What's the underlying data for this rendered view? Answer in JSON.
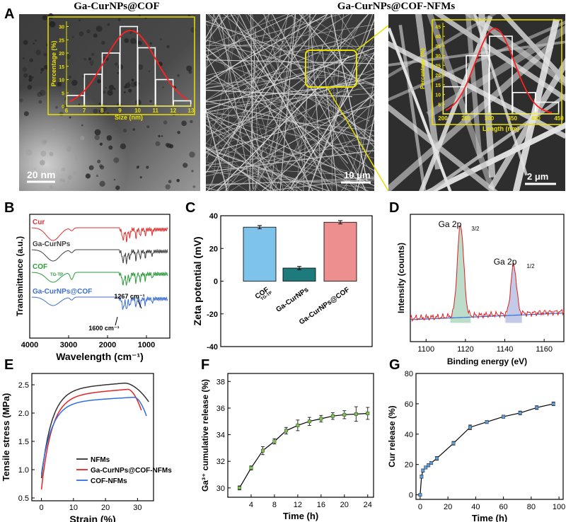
{
  "panel_labels": {
    "A": "A",
    "B": "B",
    "C": "C",
    "D": "D",
    "E": "E",
    "F": "F",
    "G": "G"
  },
  "panelA": {
    "title_left": "Ga-CurNPs@COF",
    "title_right": "Ga-CurNPs@COF-NFMs",
    "scale1": "20 nm",
    "scale2": "10 μm",
    "scale3": "2 μm",
    "colors": {
      "inset_border": "#e8e000",
      "fit": "#ff2020"
    }
  },
  "chart_data": [
    {
      "id": "A_size_hist",
      "type": "bar",
      "xlabel": "Size (nm)",
      "ylabel": "Percentage (%)",
      "xticks": [
        "6",
        "7",
        "8",
        "9",
        "10",
        "11",
        "12",
        "13"
      ],
      "yticks": [
        "0",
        "5",
        "10",
        "15",
        "20",
        "25",
        "30"
      ],
      "xlim": [
        6,
        13
      ],
      "ylim": [
        0,
        32
      ],
      "bins": [
        6.5,
        7.5,
        8.5,
        9.5,
        10.5,
        11.5,
        12.5
      ],
      "values": [
        4,
        12,
        20,
        30,
        22,
        10,
        2
      ],
      "fit_mean": 9.6,
      "fit_sigma": 1.45,
      "fit_peak": 28.5
    },
    {
      "id": "A_length_hist",
      "type": "bar",
      "xlabel": "Length (nm)",
      "ylabel": "Percentage (%)",
      "xticks": [
        "200",
        "250",
        "300",
        "350",
        "400",
        "450"
      ],
      "yticks": [
        "5",
        "10",
        "15",
        "20",
        "25",
        "30",
        "35",
        "40",
        "45"
      ],
      "xlim": [
        200,
        450
      ],
      "ylim": [
        0,
        47
      ],
      "bins": [
        225,
        275,
        325,
        375,
        425
      ],
      "values": [
        14,
        30,
        40,
        11,
        6
      ],
      "fit_mean": 312,
      "fit_sigma": 42,
      "fit_peak": 44
    },
    {
      "id": "B_ftir",
      "type": "line",
      "xlabel": "Wavelength (cm⁻¹)",
      "ylabel": "Transmittance (a.u.)",
      "xticks": [
        "4000",
        "3000",
        "2000",
        "1000"
      ],
      "xlim": [
        4000,
        400
      ],
      "series": [
        {
          "name": "Cur",
          "color": "#e03030"
        },
        {
          "name": "Ga-CurNPs",
          "color": "#404040"
        },
        {
          "name": "COF",
          "sub": "TG-TP",
          "color": "#2a9a3a"
        },
        {
          "name": "Ga-CurNPs@COF",
          "color": "#3b6fd0"
        }
      ],
      "annotations": [
        "1267 cm⁻¹",
        "1600 cm⁻¹"
      ]
    },
    {
      "id": "C_zeta",
      "type": "bar",
      "ylabel": "Zeta potential (mV)",
      "yticks": [
        "40",
        "20",
        "0",
        "-20",
        "-40"
      ],
      "ylim": [
        -40,
        40
      ],
      "categories": [
        "COF",
        "Ga-CurNPs",
        "Ga-CurNPs@COF"
      ],
      "category_sub": [
        "TG-TP",
        "",
        ""
      ],
      "values": [
        33,
        8,
        36
      ],
      "errors": [
        1,
        1,
        1
      ],
      "colors": [
        "#7ec3ea",
        "#1d7b7b",
        "#ee8f8f"
      ]
    },
    {
      "id": "D_xps",
      "type": "line",
      "xlabel": "Binding energy (eV)",
      "ylabel": "Intensity (counts)",
      "xticks": [
        "1100",
        "1120",
        "1140",
        "1160"
      ],
      "xlim": [
        1092,
        1170
      ],
      "peaks": [
        {
          "label": "Ga 2p",
          "sub": "3/2",
          "center": 1117.5
        },
        {
          "label": "Ga 2p",
          "sub": "1/2",
          "center": 1144.5
        }
      ]
    },
    {
      "id": "E_tensile",
      "type": "line",
      "xlabel": "Strain (%)",
      "ylabel": "Tensile stress (MPa)",
      "xticks": [
        "0",
        "10",
        "20",
        "30"
      ],
      "yticks": [
        "0.5",
        "1.0",
        "1.5",
        "2.0",
        "2.5"
      ],
      "xlim": [
        -3,
        35
      ],
      "ylim": [
        0.45,
        2.7
      ],
      "series": [
        {
          "name": "NFMs",
          "color": "#333333",
          "start": 0.85,
          "max": 2.53,
          "peakx": 26,
          "endx": 33.5,
          "endy": 2.2
        },
        {
          "name": "Ga-CurNPs@COF-NFMs",
          "color": "#e52525",
          "start": 0.65,
          "max": 2.42,
          "peakx": 27,
          "endx": 31.2,
          "endy": 2.05
        },
        {
          "name": "COF-NFMs",
          "color": "#2f6fe0",
          "start": 0.92,
          "max": 2.28,
          "peakx": 29,
          "endx": 32.8,
          "endy": 1.95
        }
      ]
    },
    {
      "id": "F_release",
      "type": "line",
      "xlabel": "Time (h)",
      "ylabel": "Ga³⁺ cumulative release (%)",
      "xticks": [
        "4",
        "8",
        "12",
        "16",
        "20",
        "24"
      ],
      "yticks": [
        "30",
        "32",
        "34",
        "36",
        "38"
      ],
      "xlim": [
        0,
        25
      ],
      "ylim": [
        29.3,
        38.6
      ],
      "x": [
        2,
        4,
        6,
        8,
        10,
        12,
        14,
        16,
        18,
        20,
        22,
        24
      ],
      "y": [
        30.0,
        31.5,
        32.8,
        33.5,
        34.3,
        34.7,
        35.0,
        35.2,
        35.4,
        35.5,
        35.55,
        35.6
      ],
      "err": [
        0.15,
        0.15,
        0.3,
        0.2,
        0.25,
        0.4,
        0.3,
        0.25,
        0.25,
        0.3,
        0.55,
        0.45
      ],
      "marker_color": "#7cc84a"
    },
    {
      "id": "G_release",
      "type": "line",
      "xlabel": "Time (h)",
      "ylabel": "Cur release (%)",
      "xticks": [
        "0",
        "20",
        "40",
        "60",
        "80",
        "100"
      ],
      "yticks": [
        "0",
        "20",
        "40",
        "60",
        "80"
      ],
      "xlim": [
        -3,
        103
      ],
      "ylim": [
        -3,
        80
      ],
      "x": [
        0,
        1,
        2,
        4,
        6,
        8,
        12,
        24,
        36,
        48,
        60,
        72,
        84,
        96
      ],
      "y": [
        0,
        12,
        16,
        18,
        19.5,
        21,
        24,
        34,
        44.5,
        48,
        51.5,
        54,
        57.5,
        60
      ],
      "err": [
        0.5,
        1,
        1,
        1,
        1,
        1,
        1.2,
        1.2,
        1.5,
        1,
        1,
        1.2,
        1.2,
        1.2
      ],
      "marker_color": "#5aa0e0"
    }
  ]
}
